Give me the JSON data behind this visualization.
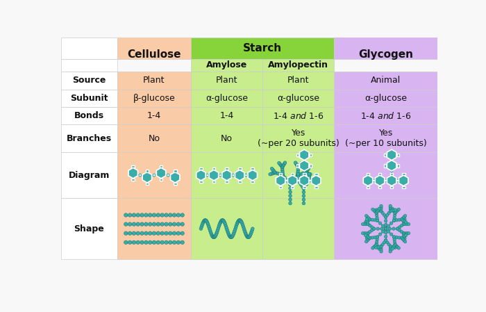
{
  "bg_color": "#f8f8f8",
  "col_colors": {
    "cellulose": "#f9cba7",
    "starch": "#c8ed8c",
    "glycogen": "#d8b4f0",
    "starch_header": "#86d33a",
    "label_col": "#ffffff"
  },
  "data": {
    "source": [
      "Plant",
      "Plant",
      "Plant",
      "Animal"
    ],
    "subunit": [
      "β-glucose",
      "α-glucose",
      "α-glucose",
      "α-glucose"
    ],
    "bonds": [
      "1-4",
      "1-4",
      "1-4 and 1-6",
      "1-4 and 1-6"
    ],
    "branches": [
      "No",
      "No",
      "Yes\n(~per 20 subunits)",
      "Yes\n(~per 10 subunits)"
    ]
  },
  "teal": "#3aada8",
  "teal_edge": "#1a7a76"
}
